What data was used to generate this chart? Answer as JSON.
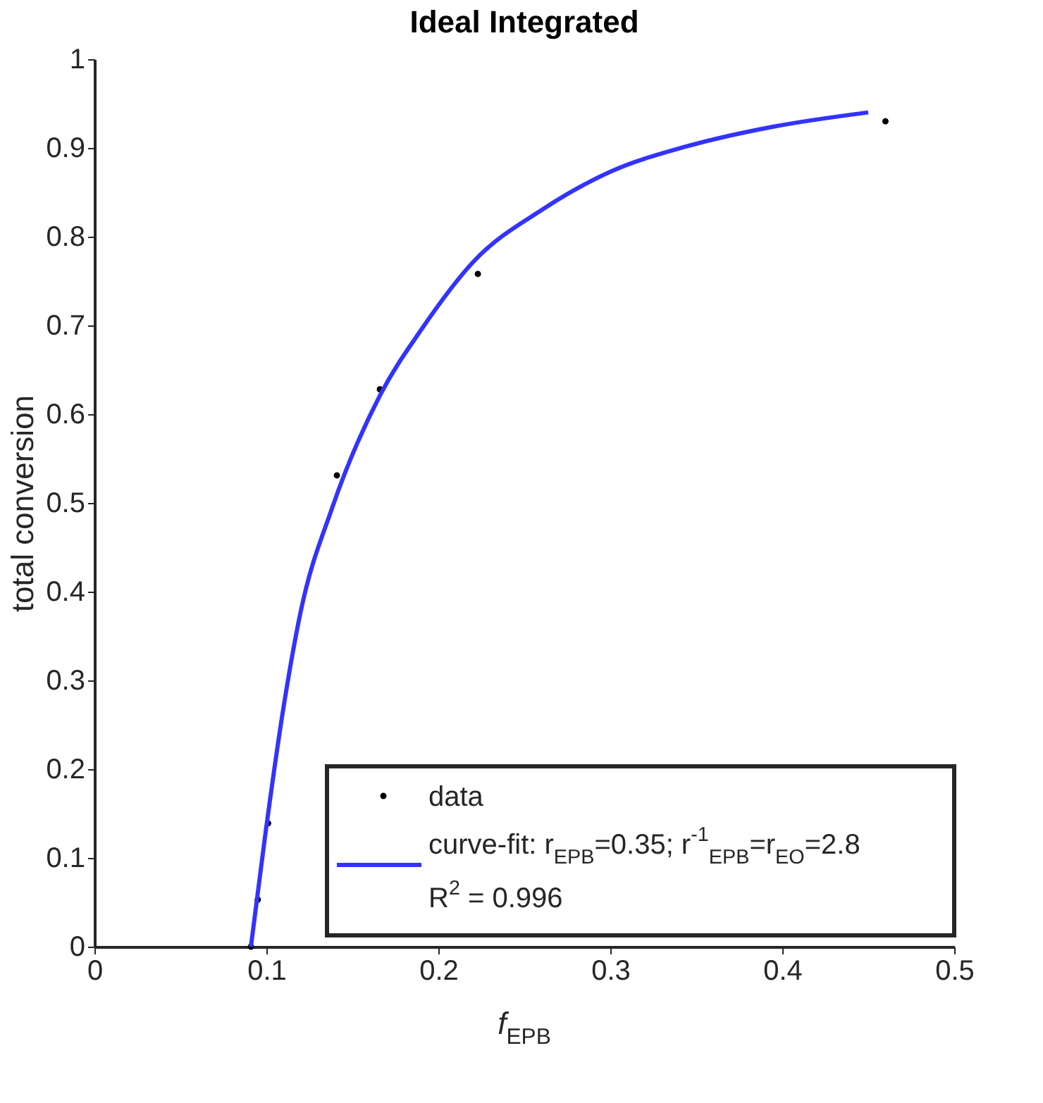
{
  "chart_data": {
    "type": "scatter",
    "title": "Ideal Integrated",
    "xlabel": "f$_{EPB}$",
    "ylabel": "total conversion",
    "xlim": [
      0,
      0.5
    ],
    "xticks": [
      0,
      0.1,
      0.2,
      0.3,
      0.4,
      0.5
    ],
    "ylim": [
      0,
      1
    ],
    "yticks": [
      0,
      0.1,
      0.2,
      0.3,
      0.4,
      0.5,
      0.6,
      0.7,
      0.8,
      0.9,
      1
    ],
    "grid": false,
    "legend": "bottom right",
    "series": [
      {
        "name": "data",
        "marker": "circle",
        "color": "#000000",
        "x": [
          0.091,
          0.095,
          0.101,
          0.141,
          0.166,
          0.223,
          0.46
        ],
        "values": [
          0,
          0.053,
          0.139,
          0.531,
          0.628,
          0.758,
          0.93
        ]
      },
      {
        "name": "curve-fit: r$_{EPB}$=0.35; r$^{-1}$$_{EPB}$=r$_{EO}$=2.8",
        "type": "line",
        "marker": "none",
        "line_style": "solid",
        "color": "#3333ff",
        "x": [
          0.091,
          0.099,
          0.11,
          0.12,
          0.138,
          0.166,
          0.19,
          0.221,
          0.26,
          0.301,
          0.343,
          0.395,
          0.45
        ],
        "values": [
          0,
          0.121,
          0.27,
          0.378,
          0.493,
          0.621,
          0.695,
          0.773,
          0.83,
          0.874,
          0.901,
          0.924,
          0.94
        ]
      }
    ],
    "annotations": [
      "R$^{2}$ = 0.996"
    ]
  }
}
